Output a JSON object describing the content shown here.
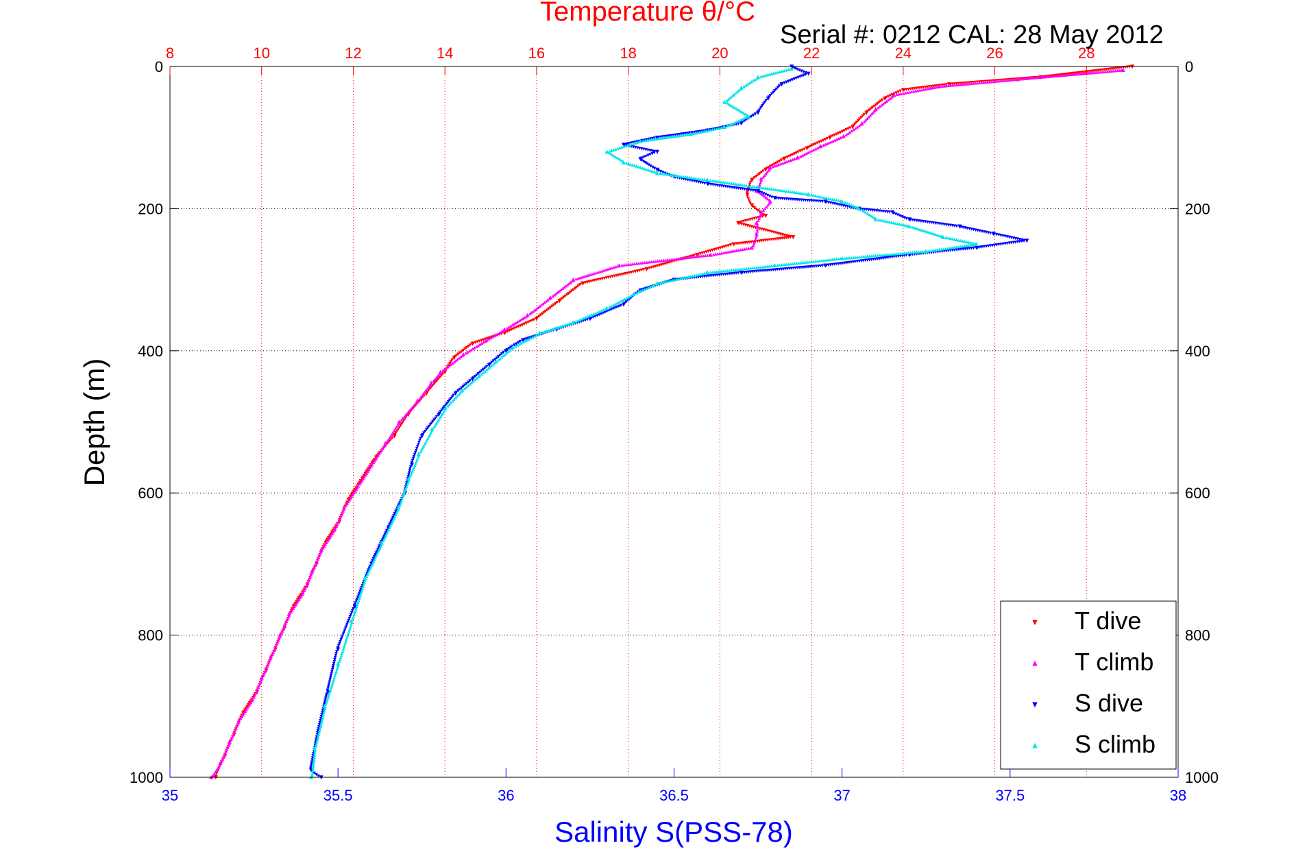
{
  "chart_data": {
    "type": "scatter",
    "title": "Temperature θ/°C",
    "annotation": "Serial #: 0212  CAL: 28 May 2012",
    "xlabel_bottom": "Salinity S(PSS-78)",
    "ylabel": "Depth (m)",
    "x_top": {
      "label": "Temperature θ/°C",
      "lim": [
        8,
        30
      ],
      "ticks": [
        "8",
        "10",
        "12",
        "14",
        "16",
        "18",
        "20",
        "22",
        "24",
        "26",
        "28"
      ],
      "color": "#ff0000"
    },
    "x_bottom": {
      "label": "Salinity S(PSS-78)",
      "lim": [
        35,
        38
      ],
      "ticks": [
        "35",
        "35.5",
        "36",
        "36.5",
        "37",
        "37.5",
        "38"
      ],
      "color": "#0000ff"
    },
    "y": {
      "lim": [
        0,
        1000
      ],
      "reversed": true,
      "ticks": [
        "0",
        "200",
        "400",
        "600",
        "800",
        "1000"
      ]
    },
    "grid": true,
    "legend": {
      "placement": "bottom-right"
    },
    "series": [
      {
        "name": "T dive",
        "axis": "top",
        "color": "#ff0000",
        "marker": "triangle-down",
        "points": [
          [
            29.0,
            0
          ],
          [
            27.0,
            15
          ],
          [
            25.0,
            25
          ],
          [
            24.0,
            33
          ],
          [
            23.6,
            45
          ],
          [
            23.2,
            65
          ],
          [
            22.9,
            85
          ],
          [
            22.4,
            100
          ],
          [
            21.9,
            115
          ],
          [
            21.4,
            130
          ],
          [
            21.0,
            145
          ],
          [
            20.7,
            160
          ],
          [
            20.6,
            180
          ],
          [
            20.7,
            195
          ],
          [
            21.0,
            210
          ],
          [
            20.4,
            220
          ],
          [
            21.6,
            240
          ],
          [
            20.3,
            250
          ],
          [
            19.5,
            265
          ],
          [
            18.4,
            285
          ],
          [
            17.0,
            305
          ],
          [
            16.5,
            330
          ],
          [
            16.0,
            355
          ],
          [
            15.3,
            375
          ],
          [
            14.6,
            390
          ],
          [
            14.2,
            410
          ],
          [
            14.0,
            430
          ],
          [
            13.6,
            460
          ],
          [
            13.2,
            490
          ],
          [
            12.9,
            520
          ],
          [
            12.5,
            550
          ],
          [
            12.2,
            580
          ],
          [
            11.9,
            610
          ],
          [
            11.7,
            640
          ],
          [
            11.4,
            670
          ],
          [
            11.2,
            700
          ],
          [
            11.0,
            730
          ],
          [
            10.7,
            760
          ],
          [
            10.5,
            790
          ],
          [
            10.3,
            820
          ],
          [
            10.1,
            850
          ],
          [
            9.9,
            880
          ],
          [
            9.6,
            910
          ],
          [
            9.4,
            940
          ],
          [
            9.2,
            970
          ],
          [
            9.0,
            1000
          ]
        ]
      },
      {
        "name": "T climb",
        "axis": "top",
        "color": "#ff00ff",
        "marker": "triangle-up",
        "points": [
          [
            28.8,
            5
          ],
          [
            26.5,
            18
          ],
          [
            24.8,
            28
          ],
          [
            23.8,
            40
          ],
          [
            23.4,
            60
          ],
          [
            23.1,
            80
          ],
          [
            22.7,
            98
          ],
          [
            22.2,
            112
          ],
          [
            21.7,
            128
          ],
          [
            21.1,
            142
          ],
          [
            20.9,
            158
          ],
          [
            20.8,
            175
          ],
          [
            21.1,
            190
          ],
          [
            20.9,
            205
          ],
          [
            20.8,
            220
          ],
          [
            20.8,
            235
          ],
          [
            20.7,
            255
          ],
          [
            19.8,
            265
          ],
          [
            17.8,
            280
          ],
          [
            16.8,
            300
          ],
          [
            16.3,
            325
          ],
          [
            15.8,
            350
          ],
          [
            15.3,
            370
          ],
          [
            14.9,
            385
          ],
          [
            14.4,
            405
          ],
          [
            13.9,
            430
          ],
          [
            13.7,
            445
          ],
          [
            13.4,
            470
          ],
          [
            13.0,
            500
          ],
          [
            12.7,
            530
          ],
          [
            12.4,
            560
          ],
          [
            12.1,
            590
          ],
          [
            11.8,
            620
          ],
          [
            11.6,
            650
          ],
          [
            11.3,
            680
          ],
          [
            11.1,
            710
          ],
          [
            10.9,
            740
          ],
          [
            10.6,
            770
          ],
          [
            10.4,
            800
          ],
          [
            10.2,
            830
          ],
          [
            10.0,
            860
          ],
          [
            9.8,
            890
          ],
          [
            9.5,
            920
          ],
          [
            9.3,
            950
          ],
          [
            9.1,
            980
          ],
          [
            8.9,
            1000
          ]
        ]
      },
      {
        "name": "S dive",
        "axis": "bottom",
        "color": "#0000ff",
        "marker": "triangle-down",
        "points": [
          [
            36.85,
            0
          ],
          [
            36.9,
            10
          ],
          [
            36.82,
            25
          ],
          [
            36.78,
            45
          ],
          [
            36.75,
            65
          ],
          [
            36.7,
            80
          ],
          [
            36.6,
            90
          ],
          [
            36.45,
            100
          ],
          [
            36.35,
            110
          ],
          [
            36.45,
            120
          ],
          [
            36.4,
            130
          ],
          [
            36.45,
            145
          ],
          [
            36.5,
            155
          ],
          [
            36.6,
            165
          ],
          [
            36.75,
            175
          ],
          [
            36.8,
            185
          ],
          [
            36.95,
            190
          ],
          [
            37.05,
            200
          ],
          [
            37.15,
            205
          ],
          [
            37.2,
            215
          ],
          [
            37.35,
            225
          ],
          [
            37.45,
            235
          ],
          [
            37.55,
            245
          ],
          [
            37.4,
            255
          ],
          [
            37.2,
            265
          ],
          [
            36.95,
            280
          ],
          [
            36.7,
            290
          ],
          [
            36.5,
            300
          ],
          [
            36.4,
            315
          ],
          [
            36.35,
            335
          ],
          [
            36.25,
            355
          ],
          [
            36.15,
            370
          ],
          [
            36.05,
            385
          ],
          [
            36.0,
            400
          ],
          [
            35.95,
            420
          ],
          [
            35.9,
            440
          ],
          [
            35.85,
            460
          ],
          [
            35.8,
            490
          ],
          [
            35.75,
            520
          ],
          [
            35.72,
            560
          ],
          [
            35.7,
            600
          ],
          [
            35.65,
            650
          ],
          [
            35.6,
            700
          ],
          [
            35.55,
            760
          ],
          [
            35.5,
            820
          ],
          [
            35.47,
            880
          ],
          [
            35.44,
            940
          ],
          [
            35.42,
            990
          ],
          [
            35.45,
            1000
          ]
        ]
      },
      {
        "name": "S climb",
        "axis": "bottom",
        "color": "#00e5e5",
        "marker": "triangle-up",
        "points": [
          [
            36.85,
            3
          ],
          [
            36.75,
            15
          ],
          [
            36.7,
            30
          ],
          [
            36.65,
            50
          ],
          [
            36.72,
            70
          ],
          [
            36.65,
            85
          ],
          [
            36.55,
            95
          ],
          [
            36.4,
            105
          ],
          [
            36.3,
            120
          ],
          [
            36.35,
            135
          ],
          [
            36.45,
            150
          ],
          [
            36.6,
            160
          ],
          [
            36.75,
            170
          ],
          [
            36.9,
            180
          ],
          [
            37.0,
            190
          ],
          [
            37.05,
            200
          ],
          [
            37.1,
            215
          ],
          [
            37.2,
            225
          ],
          [
            37.3,
            240
          ],
          [
            37.4,
            250
          ],
          [
            37.25,
            260
          ],
          [
            37.0,
            270
          ],
          [
            36.8,
            280
          ],
          [
            36.6,
            290
          ],
          [
            36.45,
            305
          ],
          [
            36.38,
            320
          ],
          [
            36.3,
            340
          ],
          [
            36.2,
            360
          ],
          [
            36.1,
            375
          ],
          [
            36.02,
            395
          ],
          [
            35.97,
            415
          ],
          [
            35.92,
            435
          ],
          [
            35.87,
            455
          ],
          [
            35.82,
            480
          ],
          [
            35.78,
            510
          ],
          [
            35.74,
            545
          ],
          [
            35.71,
            580
          ],
          [
            35.68,
            620
          ],
          [
            35.63,
            670
          ],
          [
            35.58,
            720
          ],
          [
            35.54,
            780
          ],
          [
            35.5,
            840
          ],
          [
            35.46,
            900
          ],
          [
            35.43,
            960
          ],
          [
            35.42,
            1000
          ]
        ]
      }
    ]
  }
}
